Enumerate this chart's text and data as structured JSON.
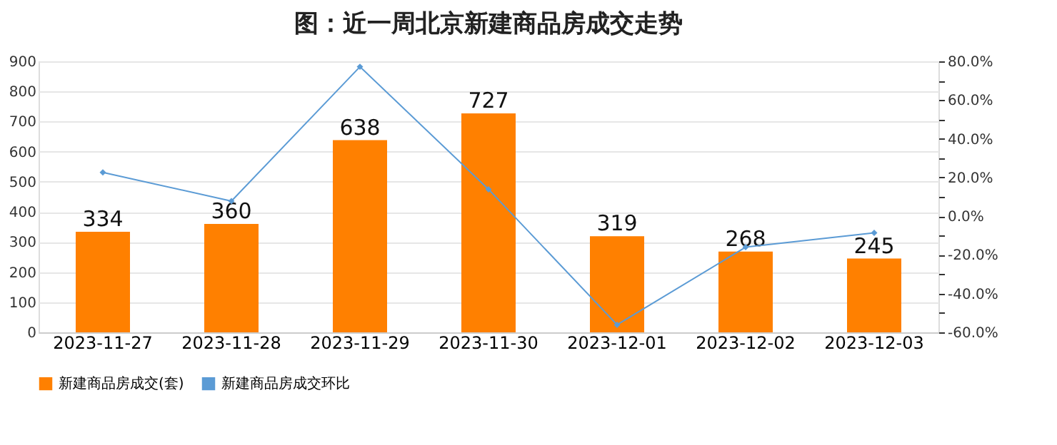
{
  "chart_data": {
    "type": "bar",
    "title": "图：近一周北京新建商品房成交走势",
    "categories": [
      "2023-11-27",
      "2023-11-28",
      "2023-11-29",
      "2023-11-30",
      "2023-12-01",
      "2023-12-02",
      "2023-12-03"
    ],
    "series": [
      {
        "name": "新建商品房成交(套)",
        "type": "bar",
        "color": "#ff8000",
        "values": [
          334,
          360,
          638,
          727,
          319,
          268,
          245
        ],
        "value_labels": [
          "334",
          "360",
          "638",
          "727",
          "319",
          "268",
          "245"
        ]
      },
      {
        "name": "新建商品房成交环比",
        "type": "line",
        "axis": "y2",
        "color": "#5b9bd5",
        "marker": "diamond",
        "values": [
          22.6,
          7.8,
          77.2,
          13.9,
          -56.1,
          -16.0,
          -8.6
        ]
      }
    ],
    "ylim": [
      0,
      900
    ],
    "yticks": [
      0,
      100,
      200,
      300,
      400,
      500,
      600,
      700,
      800,
      900
    ],
    "y2lim": [
      -60,
      80
    ],
    "y2ticks": [
      {
        "value": -60,
        "label": "-60.0%"
      },
      {
        "value": -50,
        "label": null
      },
      {
        "value": -40,
        "label": "-40.0%"
      },
      {
        "value": -30,
        "label": null
      },
      {
        "value": -20,
        "label": "-20.0%"
      },
      {
        "value": -10,
        "label": null
      },
      {
        "value": 0,
        "label": "0.0%"
      },
      {
        "value": 10,
        "label": null
      },
      {
        "value": 20,
        "label": "20.0%"
      },
      {
        "value": 30,
        "label": null
      },
      {
        "value": 40,
        "label": "40.0%"
      },
      {
        "value": 50,
        "label": null
      },
      {
        "value": 60,
        "label": "60.0%"
      },
      {
        "value": 70,
        "label": null
      },
      {
        "value": 80,
        "label": "80.0%"
      }
    ],
    "grid": "y",
    "legend": "bottom"
  }
}
